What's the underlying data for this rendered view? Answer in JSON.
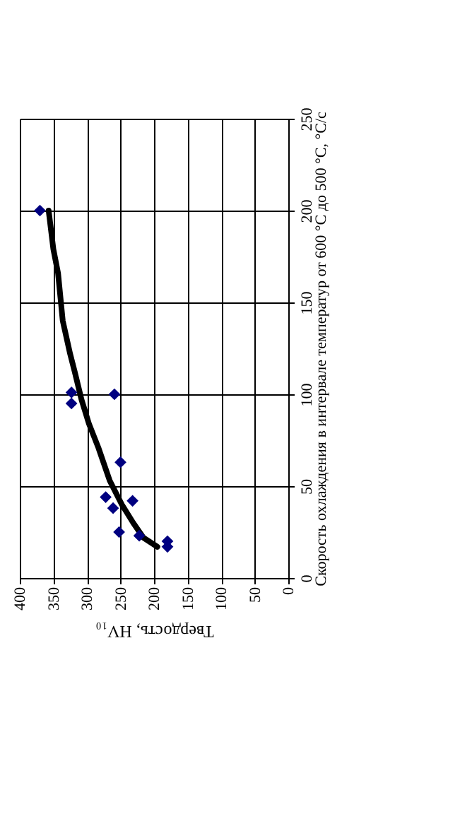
{
  "chart_data": {
    "type": "scatter",
    "xlabel": "Твердость, HV₁₀",
    "ylabel": "Скорость охлаждения в интервале температур от 600 °C  до 500 °C, °C/с",
    "xlim": [
      400,
      0
    ],
    "xticks": [
      400,
      350,
      300,
      250,
      200,
      150,
      100,
      50,
      0
    ],
    "ylim": [
      0,
      250
    ],
    "yticks": [
      0,
      50,
      100,
      150,
      200,
      250
    ],
    "grid": true,
    "series": [
      {
        "type": "scatter",
        "color": "#000080",
        "marker": "diamond",
        "x": [
          370,
          323,
          323,
          259,
          250,
          272,
          261,
          232,
          252,
          222,
          180,
          180
        ],
        "values": [
          200,
          101,
          95,
          100,
          63,
          44,
          38,
          42,
          25,
          23,
          20,
          17
        ]
      },
      {
        "type": "line",
        "color": "#000000",
        "marker": "none",
        "line_style": "solid",
        "x": [
          357,
          350,
          343,
          336,
          325,
          318,
          308,
          297,
          283,
          266,
          248,
          231,
          216,
          195
        ],
        "values": [
          200,
          179,
          166,
          140,
          122,
          112,
          97,
          84,
          71,
          53,
          40,
          30,
          22,
          17
        ]
      }
    ]
  }
}
